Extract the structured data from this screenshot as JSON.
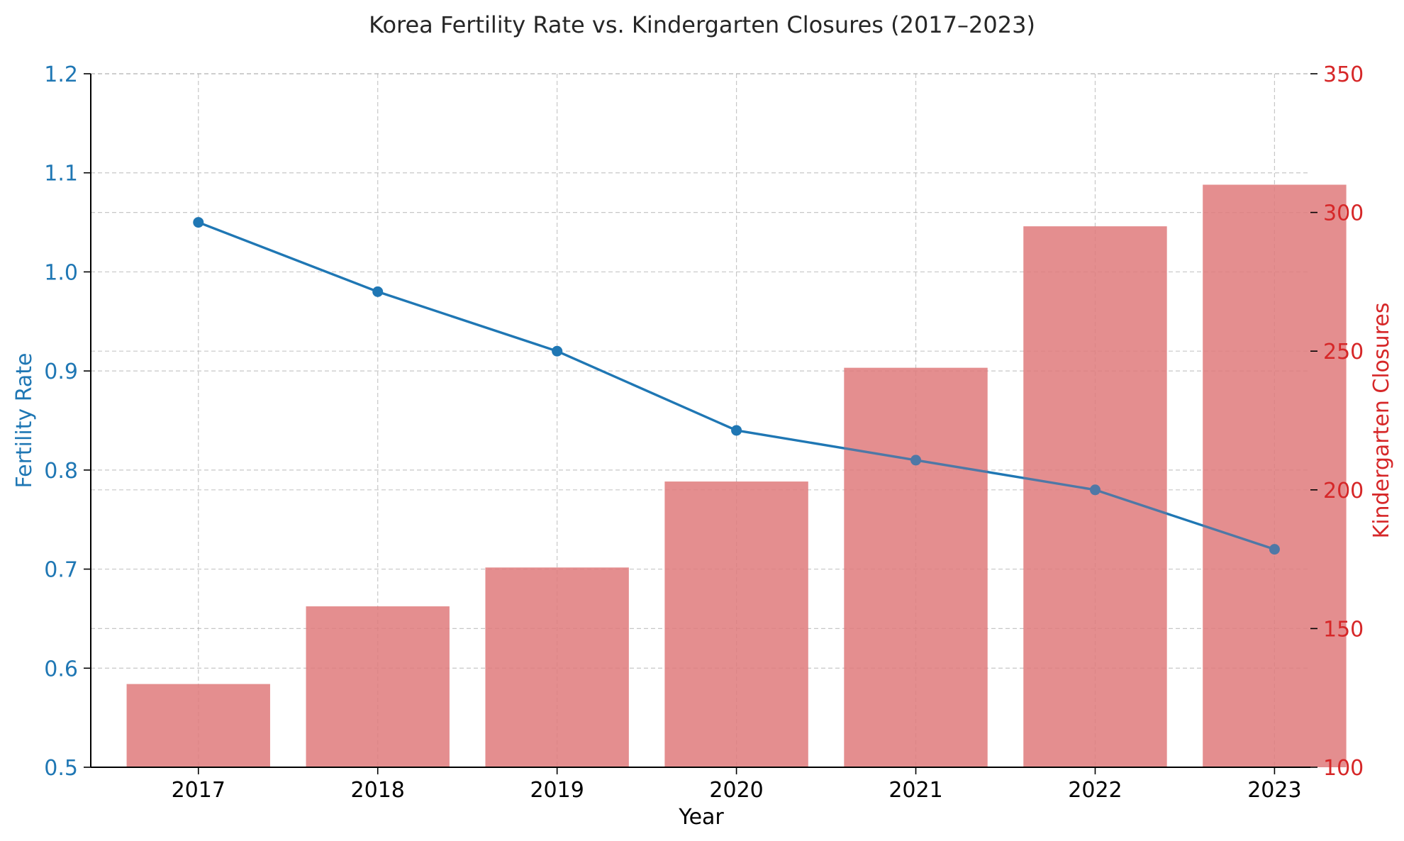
{
  "chart_data": {
    "type": "bar+line",
    "title": "Korea Fertility Rate vs. Kindergarten Closures (2017–2023)",
    "xlabel": "Year",
    "categories": [
      "2017",
      "2018",
      "2019",
      "2020",
      "2021",
      "2022",
      "2023"
    ],
    "left_axis": {
      "label": "Fertility Rate",
      "ylim": [
        0.5,
        1.2
      ],
      "ticks": [
        "0.5",
        "0.6",
        "0.7",
        "0.8",
        "0.9",
        "1.0",
        "1.1",
        "1.2"
      ],
      "color": "#1f77b4"
    },
    "right_axis": {
      "label": "Kindergarten Closures",
      "ylim": [
        100,
        350
      ],
      "ticks": [
        "100",
        "150",
        "200",
        "250",
        "300",
        "350"
      ],
      "color": "#d62728"
    },
    "series": [
      {
        "type": "line",
        "axis": "left",
        "values": [
          1.05,
          0.98,
          0.92,
          0.84,
          0.81,
          0.78,
          0.72
        ],
        "color": "#1f77b4"
      },
      {
        "type": "bar",
        "axis": "right",
        "values": [
          130,
          158,
          172,
          203,
          244,
          295,
          310
        ],
        "color": "#e07b7c"
      }
    ],
    "grid": true
  }
}
